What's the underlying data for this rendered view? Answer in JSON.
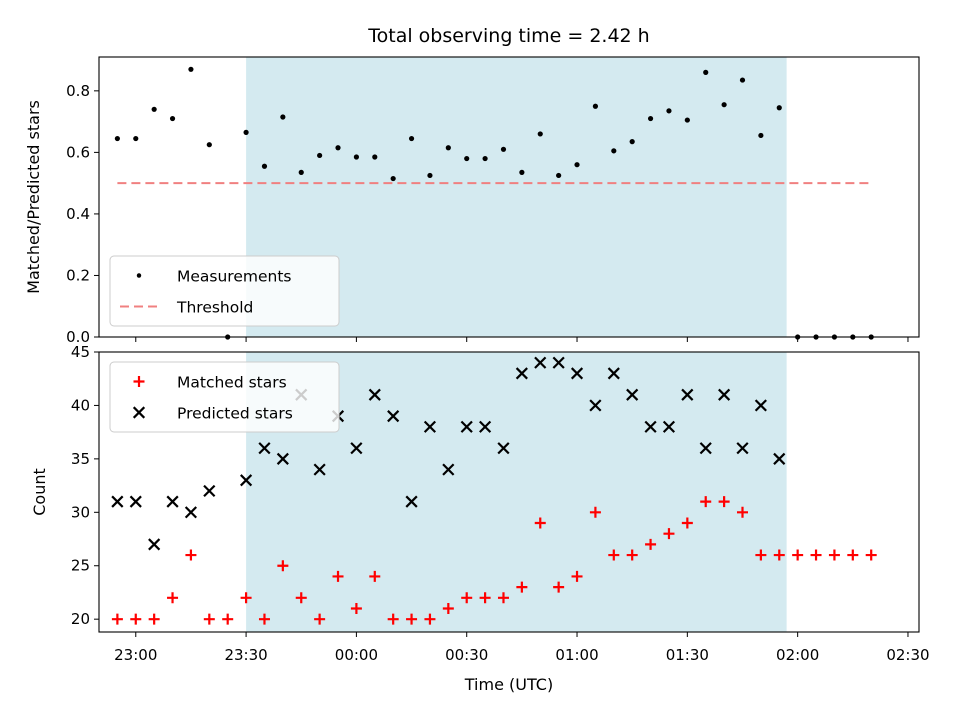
{
  "chart_data": {
    "title": "Total observing time = 2.42 h",
    "type": "scatter",
    "time_format": "HH:MM",
    "x": [
      "22:55",
      "23:00",
      "23:05",
      "23:10",
      "23:15",
      "23:20",
      "23:25",
      "23:30",
      "23:35",
      "23:40",
      "23:45",
      "23:50",
      "23:55",
      "00:00",
      "00:05",
      "00:10",
      "00:15",
      "00:20",
      "00:25",
      "00:30",
      "00:35",
      "00:40",
      "00:45",
      "00:50",
      "00:55",
      "01:00",
      "01:05",
      "01:10",
      "01:15",
      "01:20",
      "01:25",
      "01:30",
      "01:35",
      "01:40",
      "01:45",
      "01:50",
      "01:55",
      "02:00",
      "02:05",
      "02:10",
      "02:15",
      "02:20"
    ],
    "x_ticks": [
      "23:00",
      "23:30",
      "00:00",
      "00:30",
      "01:00",
      "01:30",
      "02:00",
      "02:30"
    ],
    "xlabel": "Time (UTC)",
    "xlim": [
      "22:50",
      "02:33"
    ],
    "shaded_interval": {
      "start": "23:30",
      "end": "01:57",
      "color": "#d4eaf0"
    },
    "panels": [
      {
        "ylabel": "Matched/Predicted stars",
        "ylim": [
          0,
          0.91
        ],
        "yticks": [
          "0.0",
          "0.2",
          "0.4",
          "0.6",
          "0.8"
        ],
        "series": [
          {
            "name": "Measurements",
            "marker": "dot",
            "color": "#000000",
            "values": [
              0.645,
              0.645,
              0.74,
              0.71,
              0.87,
              0.625,
              0.0,
              0.665,
              0.555,
              0.715,
              0.535,
              0.59,
              0.615,
              0.585,
              0.585,
              0.515,
              0.645,
              0.525,
              0.615,
              0.58,
              0.58,
              0.61,
              0.535,
              0.66,
              0.525,
              0.56,
              0.75,
              0.605,
              0.635,
              0.71,
              0.735,
              0.705,
              0.86,
              0.755,
              0.835,
              0.655,
              0.745,
              0.0,
              0.0,
              0.0,
              0.0,
              0.0
            ]
          }
        ],
        "threshold": {
          "name": "Threshold",
          "value": 0.5,
          "color": "#f08080",
          "style": "dashed",
          "x_start": "22:55",
          "x_end": "02:20"
        },
        "legend_loc": "lower left"
      },
      {
        "ylabel": "Count",
        "ylim": [
          18.8,
          45
        ],
        "yticks": [
          "20",
          "25",
          "30",
          "35",
          "40",
          "45"
        ],
        "series": [
          {
            "name": "Matched stars",
            "marker": "plus",
            "color": "#ff0000",
            "values": [
              20,
              20,
              20,
              22,
              26,
              20,
              20,
              22,
              20,
              25,
              22,
              20,
              24,
              21,
              24,
              20,
              20,
              20,
              21,
              22,
              22,
              22,
              23,
              29,
              23,
              24,
              30,
              26,
              26,
              27,
              28,
              29,
              31,
              31,
              30,
              26,
              26,
              26,
              26,
              26,
              26,
              26
            ]
          },
          {
            "name": "Predicted stars",
            "marker": "x",
            "color": "#000000",
            "values": [
              31,
              31,
              27,
              31,
              30,
              32,
              null,
              33,
              36,
              35,
              41,
              34,
              39,
              36,
              41,
              39,
              31,
              38,
              34,
              38,
              38,
              36,
              43,
              44,
              44,
              43,
              40,
              43,
              41,
              38,
              38,
              41,
              36,
              41,
              36,
              40,
              35,
              null,
              null,
              null,
              null,
              null
            ]
          }
        ],
        "legend_loc": "upper left"
      }
    ]
  }
}
